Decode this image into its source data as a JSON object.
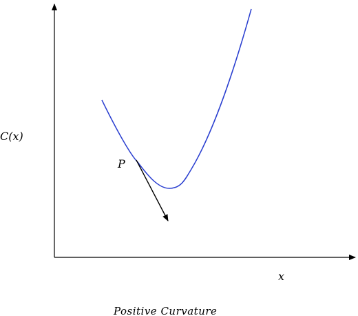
{
  "figure": {
    "y_axis_label": "C(x)",
    "x_axis_label": "x",
    "point_label": "P",
    "caption": "Positive Curvature"
  },
  "colors": {
    "curve": "#2a3fd0",
    "axes": "#000000",
    "tangent_arrow": "#000000"
  }
}
